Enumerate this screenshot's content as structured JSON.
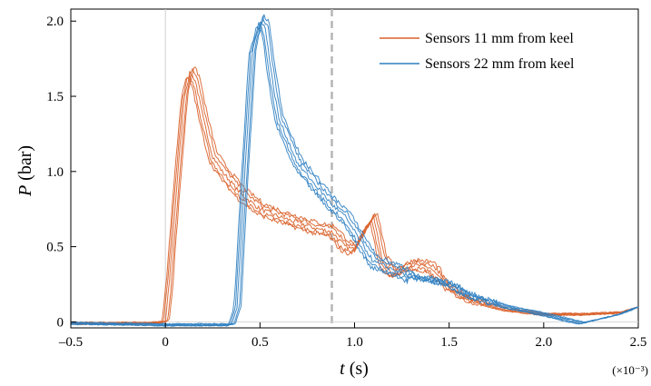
{
  "chart_data": {
    "type": "line",
    "xlabel": "t (s)",
    "xlabel_parts": {
      "var": "t",
      "unit": " (s)"
    },
    "ylabel": "P (bar)",
    "ylabel_parts": {
      "var": "P",
      "unit": " (bar)"
    },
    "x_multiplier": "(×10⁻³)",
    "xlim": [
      -0.5,
      2.5
    ],
    "ylim": [
      -0.04,
      2.08
    ],
    "x_ticks": [
      -0.5,
      0,
      0.5,
      1.0,
      1.5,
      2.0,
      2.5
    ],
    "x_tick_labels": [
      "–0.5",
      "0",
      "0.5",
      "1.0",
      "1.5",
      "2.0",
      "2.5"
    ],
    "y_ticks": [
      0,
      0.5,
      1.0,
      1.5,
      2.0
    ],
    "y_tick_labels": [
      "0",
      "0.5",
      "1.0",
      "1.5",
      "2.0"
    ],
    "grid": false,
    "reference_lines": [
      {
        "axis": "x",
        "value": 0,
        "style": "solid",
        "color": "#d0d0d0"
      },
      {
        "axis": "x",
        "value": 0.88,
        "style": "dashed",
        "color": "#b5b5b5"
      }
    ],
    "legend_position": "top-right",
    "series": [
      {
        "name": "Sensors 11 mm from keel",
        "color": "#d9612a",
        "x": [
          -0.5,
          -0.1,
          0.0,
          0.02,
          0.06,
          0.1,
          0.13,
          0.16,
          0.2,
          0.25,
          0.3,
          0.4,
          0.5,
          0.6,
          0.7,
          0.8,
          0.88,
          0.95,
          1.0,
          1.05,
          1.1,
          1.15,
          1.2,
          1.3,
          1.4,
          1.5,
          1.6,
          1.8,
          2.0,
          2.2,
          2.4,
          2.5
        ],
        "values": [
          -0.01,
          -0.01,
          0.0,
          0.25,
          0.9,
          1.5,
          1.66,
          1.6,
          1.35,
          1.1,
          1.0,
          0.85,
          0.75,
          0.7,
          0.66,
          0.62,
          0.6,
          0.5,
          0.48,
          0.6,
          0.7,
          0.4,
          0.32,
          0.38,
          0.36,
          0.22,
          0.15,
          0.08,
          0.05,
          0.05,
          0.06,
          0.1
        ]
      },
      {
        "name": "Sensors 22 mm from keel",
        "color": "#2f7fc1",
        "x": [
          -0.5,
          0.0,
          0.35,
          0.38,
          0.42,
          0.46,
          0.5,
          0.53,
          0.56,
          0.6,
          0.7,
          0.8,
          0.88,
          0.95,
          1.0,
          1.05,
          1.1,
          1.2,
          1.3,
          1.4,
          1.5,
          1.6,
          1.8,
          2.0,
          2.2,
          2.4,
          2.5
        ],
        "values": [
          -0.01,
          -0.02,
          -0.02,
          0.1,
          1.0,
          1.8,
          2.0,
          1.95,
          1.65,
          1.35,
          1.05,
          0.9,
          0.78,
          0.7,
          0.6,
          0.5,
          0.4,
          0.35,
          0.3,
          0.28,
          0.25,
          0.18,
          0.1,
          0.05,
          -0.01,
          0.05,
          0.1
        ]
      }
    ]
  }
}
